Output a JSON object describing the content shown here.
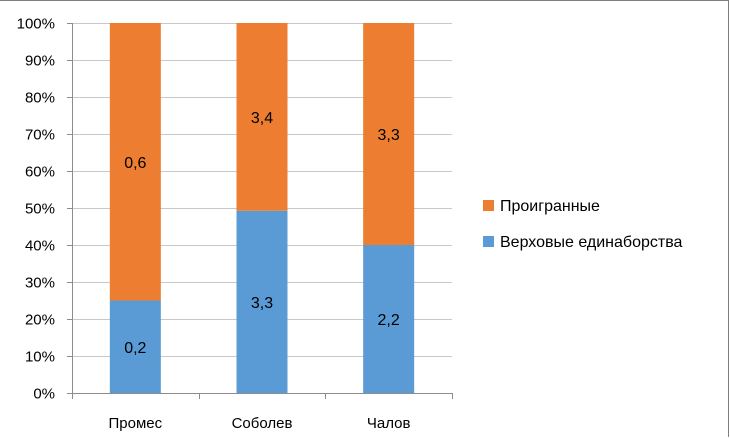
{
  "chart_data": {
    "type": "bar",
    "stacked": "percent",
    "categories": [
      "Промес",
      "Соболев",
      "Чалов"
    ],
    "series": [
      {
        "name": "Верховые единаборства",
        "values": [
          0.2,
          3.3,
          2.2
        ],
        "labels": [
          "0,2",
          "3,3",
          "2,2"
        ],
        "color": "#5b9bd5"
      },
      {
        "name": "Проигранные",
        "values": [
          0.6,
          3.4,
          3.3
        ],
        "labels": [
          "0,6",
          "3,4",
          "3,3"
        ],
        "color": "#ed7d31"
      }
    ],
    "ylim": [
      0,
      1
    ],
    "y_ticks": [
      0,
      0.1,
      0.2,
      0.3,
      0.4,
      0.5,
      0.6,
      0.7,
      0.8,
      0.9,
      1.0
    ],
    "y_tick_labels": [
      "0%",
      "10%",
      "20%",
      "30%",
      "40%",
      "50%",
      "60%",
      "70%",
      "80%",
      "90%",
      "100%"
    ],
    "grid": true,
    "legend": "right",
    "legend_order": [
      "Проигранные",
      "Верховые единаборства"
    ],
    "title": "",
    "xlabel": "",
    "ylabel": ""
  }
}
